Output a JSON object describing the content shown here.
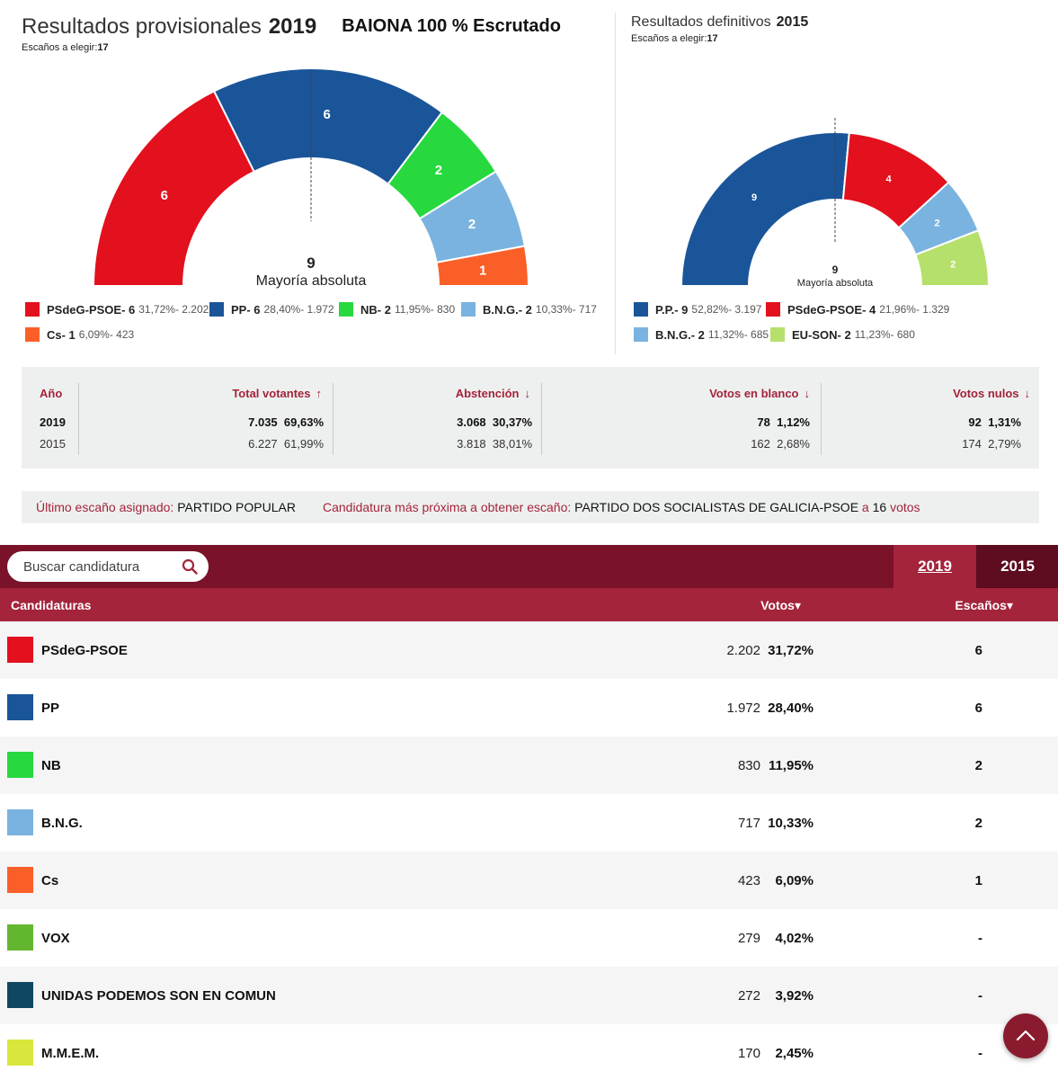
{
  "provisional": {
    "title": "Resultados provisionales",
    "year": "2019",
    "place": "BAIONA 100 % Escrutado",
    "seats_label": "Escaños a elegir:",
    "seats_total": "17",
    "majority_number": "9",
    "majority_label": "Mayoría absoluta",
    "parties": [
      {
        "name": "PSdeG-PSOE",
        "seats": 6,
        "pct": "31,72%",
        "votes": "2.202",
        "color": "#e3101d"
      },
      {
        "name": "PP",
        "seats": 6,
        "pct": "28,40%",
        "votes": "1.972",
        "color": "#1a5599"
      },
      {
        "name": "NB",
        "seats": 2,
        "pct": "11,95%",
        "votes": "830",
        "color": "#27d93f"
      },
      {
        "name": "B.N.G.",
        "seats": 2,
        "pct": "10,33%",
        "votes": "717",
        "color": "#7ab3df"
      },
      {
        "name": "Cs",
        "seats": 1,
        "pct": "6,09%",
        "votes": "423",
        "color": "#fb5f28"
      }
    ]
  },
  "definitive": {
    "title": "Resultados definitivos",
    "year": "2015",
    "seats_label": "Escaños a elegir:",
    "seats_total": "17",
    "majority_number": "9",
    "majority_label": "Mayoría absoluta",
    "parties": [
      {
        "name": "P.P.",
        "seats": 9,
        "pct": "52,82%",
        "votes": "3.197",
        "color": "#1a5599"
      },
      {
        "name": "PSdeG-PSOE",
        "seats": 4,
        "pct": "21,96%",
        "votes": "1.329",
        "color": "#e3101d"
      },
      {
        "name": "B.N.G.",
        "seats": 2,
        "pct": "11,32%",
        "votes": "685",
        "color": "#7ab3df"
      },
      {
        "name": "EU-SON",
        "seats": 2,
        "pct": "11,23%",
        "votes": "680",
        "color": "#b5e06b"
      }
    ]
  },
  "stats": {
    "year_header": "Año",
    "columns": [
      {
        "header": "Total votantes",
        "arrow": "↑",
        "r2019": "7.035",
        "p2019": "69,63%",
        "r2015": "6.227",
        "p2015": "61,99%"
      },
      {
        "header": "Abstención",
        "arrow": "↓",
        "r2019": "3.068",
        "p2019": "30,37%",
        "r2015": "3.818",
        "p2015": "38,01%"
      },
      {
        "header": "Votos en blanco",
        "arrow": "↓",
        "r2019": "78",
        "p2019": "1,12%",
        "r2015": "162",
        "p2015": "2,68%"
      },
      {
        "header": "Votos nulos",
        "arrow": "↓",
        "r2019": "92",
        "p2019": "1,31%",
        "r2015": "174",
        "p2015": "2,79%"
      }
    ],
    "year1": "2019",
    "year2": "2015"
  },
  "seat_info": {
    "last_label": "Último escaño asignado:",
    "last_value": "PARTIDO POPULAR",
    "next_label": "Candidatura más próxima a obtener escaño:",
    "next_value": "PARTIDO DOS SOCIALISTAS DE GALICIA-PSOE",
    "next_a": "a",
    "next_votes": "16",
    "next_votes_unit": "votos"
  },
  "search": {
    "placeholder": "Buscar candidatura"
  },
  "tabs": [
    {
      "label": "2019"
    },
    {
      "label": "2015"
    }
  ],
  "table": {
    "headers": {
      "candidates": "Candidaturas",
      "votes": "Votos▾",
      "seats": "Escaños▾"
    },
    "rows": [
      {
        "name": "PSdeG-PSOE",
        "votes": "2.202",
        "pct": "31,72%",
        "seats": "6",
        "color": "#e3101d"
      },
      {
        "name": "PP",
        "votes": "1.972",
        "pct": "28,40%",
        "seats": "6",
        "color": "#1a5599"
      },
      {
        "name": "NB",
        "votes": "830",
        "pct": "11,95%",
        "seats": "2",
        "color": "#27d93f"
      },
      {
        "name": "B.N.G.",
        "votes": "717",
        "pct": "10,33%",
        "seats": "2",
        "color": "#7ab3df"
      },
      {
        "name": "Cs",
        "votes": "423",
        "pct": "6,09%",
        "seats": "1",
        "color": "#fb5f28"
      },
      {
        "name": "VOX",
        "votes": "279",
        "pct": "4,02%",
        "seats": "-",
        "color": "#63b62f"
      },
      {
        "name": "UNIDAS PODEMOS SON EN COMUN",
        "votes": "272",
        "pct": "3,92%",
        "seats": "-",
        "color": "#0f4763"
      },
      {
        "name": "M.M.E.M.",
        "votes": "170",
        "pct": "2,45%",
        "seats": "-",
        "color": "#d9e73c"
      }
    ]
  }
}
